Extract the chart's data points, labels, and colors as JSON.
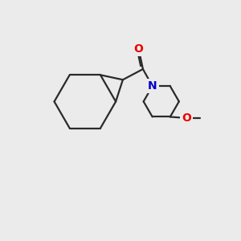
{
  "background_color": "#ebebeb",
  "bond_color": "#2a2a2a",
  "atom_colors": {
    "O": "#ee0000",
    "N": "#0000cc",
    "C": "#2a2a2a"
  },
  "bond_width": 1.6,
  "font_size": 10,
  "fig_width": 3.0,
  "fig_height": 3.0,
  "dpi": 100,
  "xlim": [
    0,
    10
  ],
  "ylim": [
    0,
    10
  ]
}
